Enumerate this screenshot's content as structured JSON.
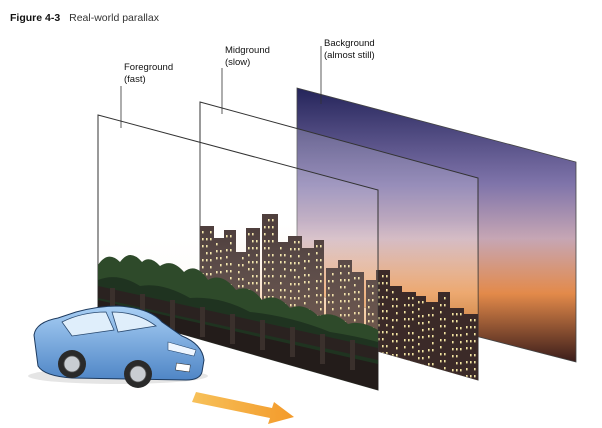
{
  "figure": {
    "number": "Figure 4-3",
    "title": "Real-world parallax"
  },
  "layers": [
    {
      "name": "Foreground",
      "speed": "(fast)"
    },
    {
      "name": "Midground",
      "speed": "(slow)"
    },
    {
      "name": "Background",
      "speed": "(almost still)"
    }
  ],
  "colors": {
    "sky_top": "#2a2a5a",
    "sky_mid": "#8a7ab0",
    "sky_horizon": "#e07a3a",
    "building": "#3a2a28",
    "window": "#f2e3a0",
    "foliage": "#2f4a2a",
    "car": "#7fb2e6",
    "arrow": "#f4a53a",
    "frame": "#4a4a4a"
  },
  "icons": [
    "car-icon",
    "arrow-right-icon"
  ]
}
